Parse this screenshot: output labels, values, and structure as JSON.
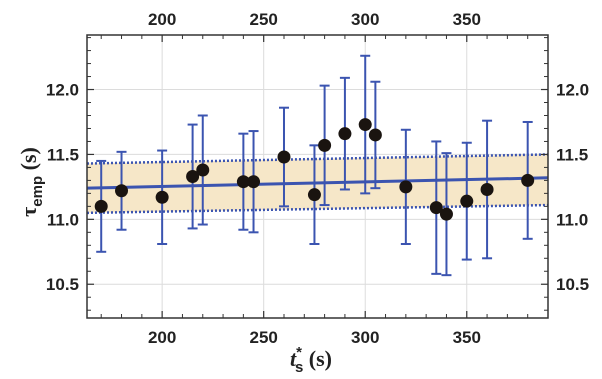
{
  "chart_data": {
    "type": "scatter",
    "title": "",
    "xlabel": {
      "main": "t",
      "superscript": "*",
      "subscript": "s",
      "unit": " (s)"
    },
    "ylabel": {
      "main": "τ",
      "subscript": "emp",
      "unit": " (s)"
    },
    "xlim": [
      163,
      390
    ],
    "ylim": [
      10.24,
      12.42
    ],
    "x_ticks": [
      200,
      250,
      300,
      350
    ],
    "y_ticks": [
      10.5,
      11.0,
      11.5,
      12.0
    ],
    "x_tick_labels": [
      "200",
      "250",
      "300",
      "350"
    ],
    "y_tick_labels": [
      "10.5",
      "11.0",
      "11.5",
      "12.0"
    ],
    "grid": true,
    "legend": "none",
    "colors": {
      "points": "#1a1410",
      "error_bars": "#3b54b0",
      "fit_line": "#3b54b0",
      "band_fill": "#f6e7c8",
      "band_edges": "#3b54b0",
      "grid": "#dcdcdc",
      "frame": "#333333"
    },
    "fit": {
      "x": [
        163,
        390
      ],
      "y": [
        11.24,
        11.32
      ],
      "band_lower": [
        11.05,
        11.11
      ],
      "band_upper": [
        11.43,
        11.5
      ]
    },
    "points": [
      {
        "x": 170,
        "y": 11.1,
        "err": 0.35
      },
      {
        "x": 180,
        "y": 11.22,
        "err": 0.3
      },
      {
        "x": 200,
        "y": 11.17,
        "err": 0.36
      },
      {
        "x": 215,
        "y": 11.33,
        "err": 0.4
      },
      {
        "x": 220,
        "y": 11.38,
        "err": 0.42
      },
      {
        "x": 240,
        "y": 11.29,
        "err": 0.37
      },
      {
        "x": 245,
        "y": 11.29,
        "err": 0.39
      },
      {
        "x": 260,
        "y": 11.48,
        "err": 0.38
      },
      {
        "x": 275,
        "y": 11.19,
        "err": 0.38
      },
      {
        "x": 280,
        "y": 11.57,
        "err": 0.46
      },
      {
        "x": 290,
        "y": 11.66,
        "err": 0.43
      },
      {
        "x": 300,
        "y": 11.73,
        "err": 0.53
      },
      {
        "x": 305,
        "y": 11.65,
        "err": 0.41
      },
      {
        "x": 320,
        "y": 11.25,
        "err": 0.44
      },
      {
        "x": 335,
        "y": 11.09,
        "err": 0.51
      },
      {
        "x": 340,
        "y": 11.04,
        "err": 0.47
      },
      {
        "x": 350,
        "y": 11.14,
        "err": 0.45
      },
      {
        "x": 360,
        "y": 11.23,
        "err": 0.53
      },
      {
        "x": 380,
        "y": 11.3,
        "err": 0.45
      }
    ]
  }
}
